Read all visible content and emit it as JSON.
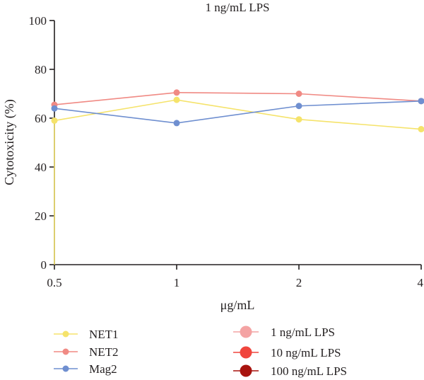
{
  "chart_data": {
    "type": "line",
    "title": "1 ng/mL LPS",
    "xlabel": "μg/mL",
    "ylabel": "Cytotoxicity (%)",
    "categories": [
      "0.5",
      "1",
      "2",
      "4"
    ],
    "ylim": [
      0,
      100
    ],
    "yticks": [
      "0",
      "20",
      "40",
      "60",
      "80",
      "100"
    ],
    "grid": false,
    "legend_position": "bottom",
    "series": [
      {
        "name": "NET1",
        "color": "#f5e36b",
        "values": [
          59,
          67.5,
          59.5,
          55.5
        ]
      },
      {
        "name": "NET2",
        "color": "#f08a84",
        "values": [
          65.5,
          70.5,
          70,
          67
        ]
      },
      {
        "name": "Mag2",
        "color": "#6f8fd0",
        "values": [
          64,
          58,
          65,
          67
        ]
      }
    ],
    "legend_extra": [
      {
        "name": "1 ng/mL LPS",
        "color": "#f4a3a3"
      },
      {
        "name": "10 ng/mL LPS",
        "color": "#f0453d"
      },
      {
        "name": "100 ng/mL LPS",
        "color": "#a8130f"
      }
    ]
  }
}
